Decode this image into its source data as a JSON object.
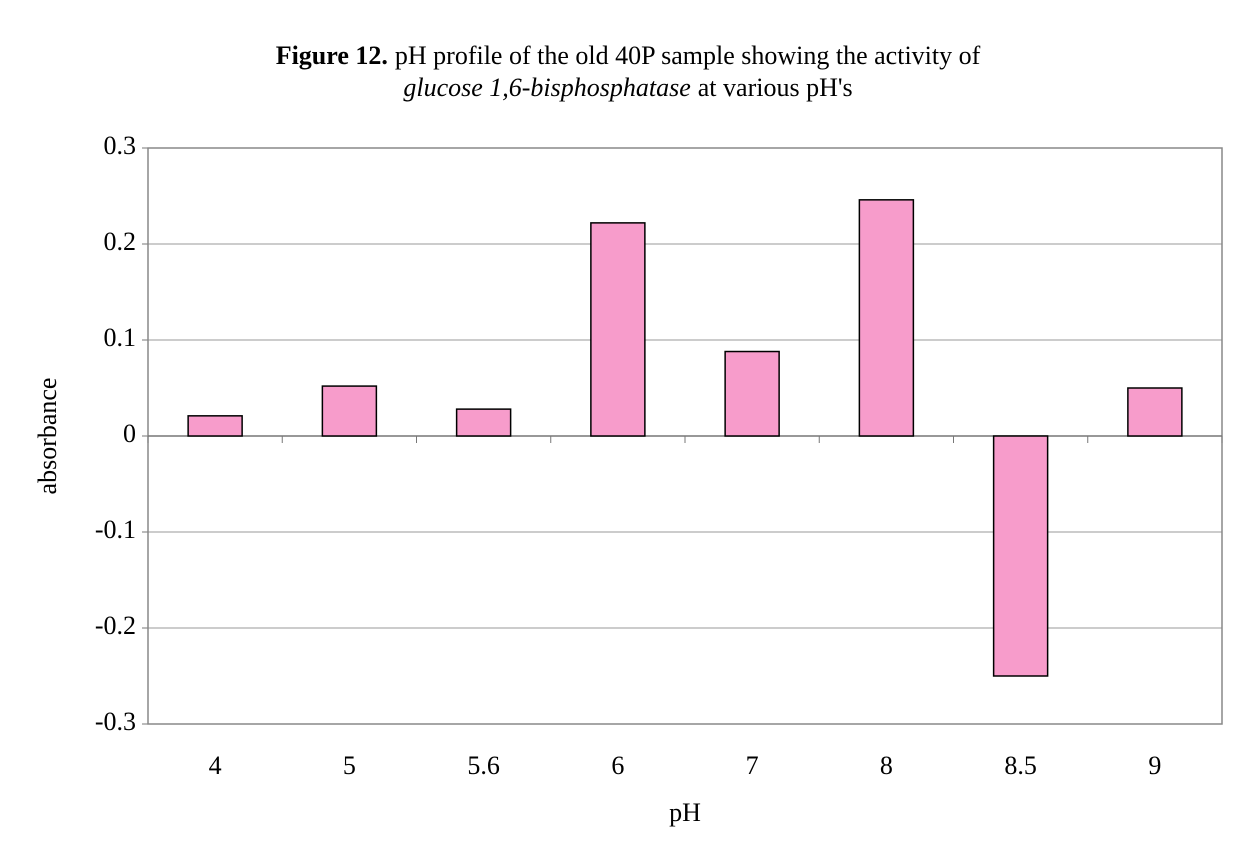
{
  "chart_data": {
    "type": "bar",
    "title": [
      "Figure 12.",
      "pH profile of the old 40P sample showing the activity of",
      "glucose 1,6-bisphosphatase",
      "at various pH's"
    ],
    "x_label": "pH",
    "y_label": "absorbance",
    "categories": [
      "4",
      "5",
      "5.6",
      "6",
      "7",
      "8",
      "8.5",
      "9"
    ],
    "values": [
      0.021,
      0.052,
      0.028,
      0.222,
      0.088,
      0.246,
      -0.25,
      0.05
    ],
    "color": "#f79ccb",
    "ylim": [
      -0.3,
      0.3
    ],
    "yticks": [
      -0.3,
      -0.2,
      -0.1,
      0,
      0.1,
      0.2,
      0.3
    ],
    "grid": true
  }
}
